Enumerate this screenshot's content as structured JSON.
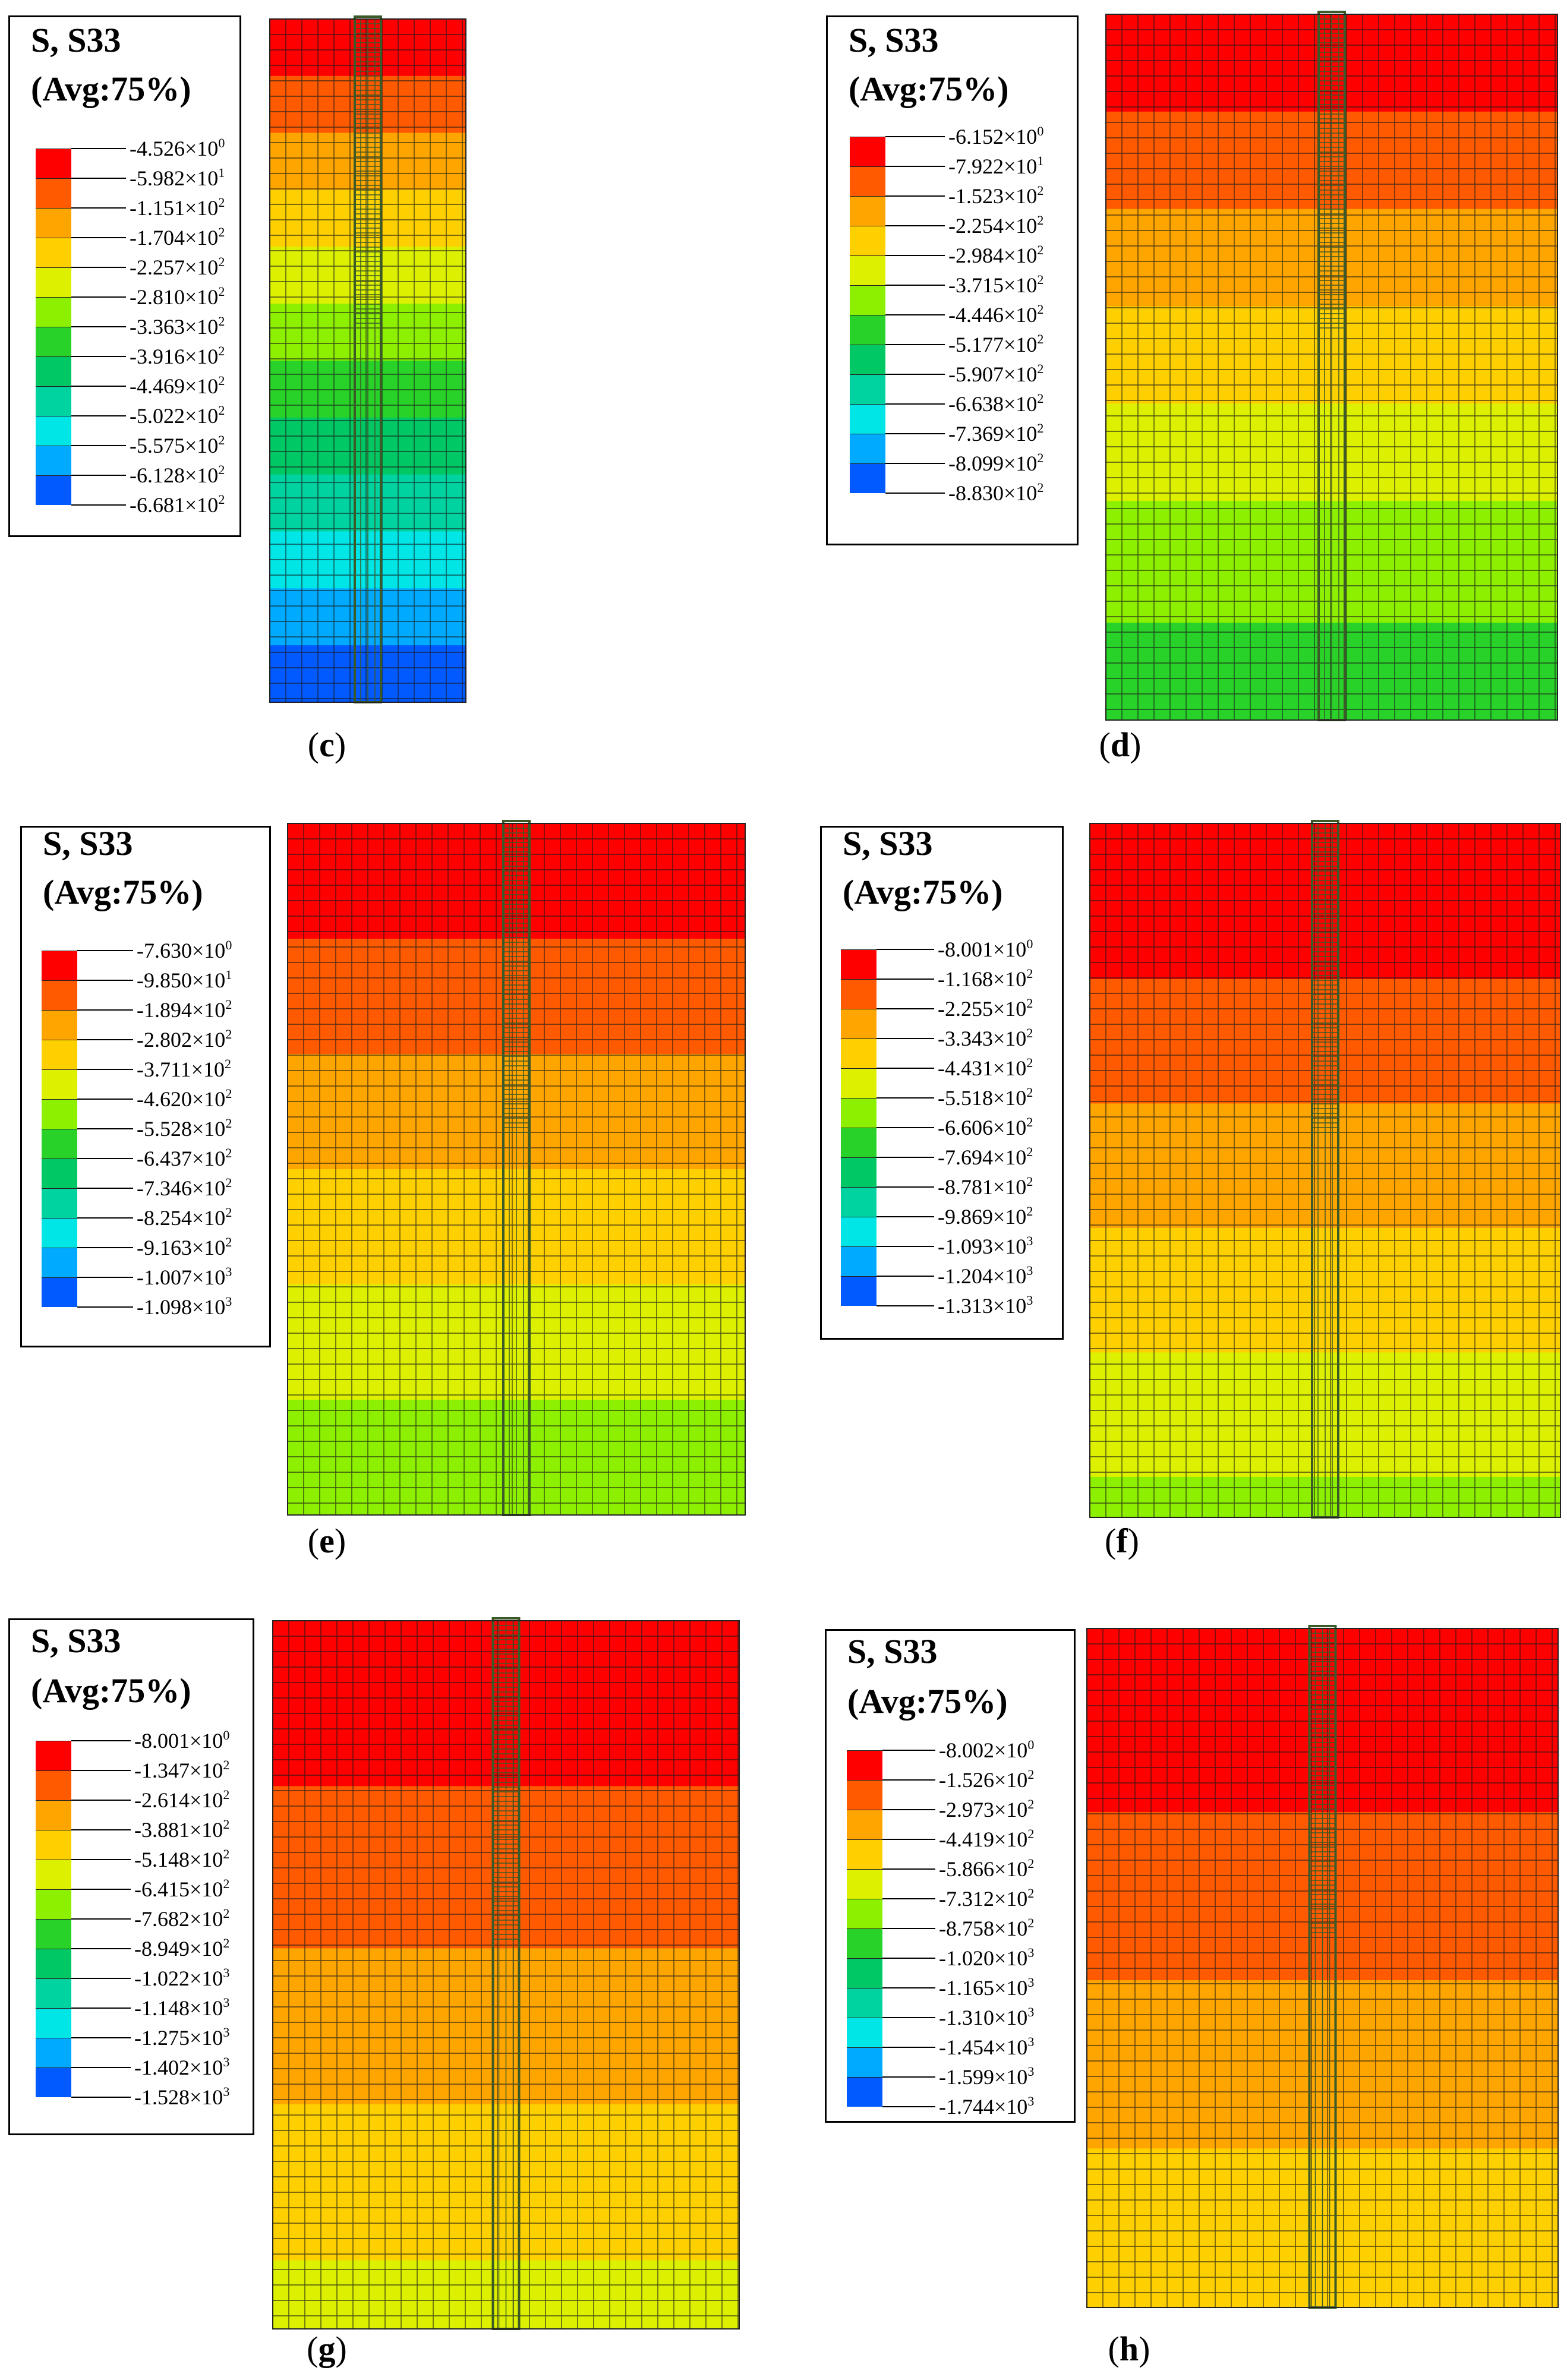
{
  "colors": {
    "scale": [
      "#ff0000",
      "#ff5a00",
      "#ffa500",
      "#ffd000",
      "#dcf000",
      "#8cf000",
      "#28d228",
      "#00c864",
      "#00d2a0",
      "#00e6e6",
      "#00aaff",
      "#005aff",
      "#0000ff"
    ],
    "mesh_line": "#1a1a1a",
    "pile": "#3c5a28"
  },
  "panels": [
    {
      "id": "c",
      "caption": {
        "open": "(",
        "letter": "c",
        "close": ")"
      },
      "title_line1": "S, S33",
      "title_line2": "(Avg:75%)",
      "ticks": [
        {
          "m": "-4.526",
          "x": "0"
        },
        {
          "m": "-5.982",
          "x": "1"
        },
        {
          "m": "-1.151",
          "x": "2"
        },
        {
          "m": "-1.704",
          "x": "2"
        },
        {
          "m": "-2.257",
          "x": "2"
        },
        {
          "m": "-2.810",
          "x": "2"
        },
        {
          "m": "-3.363",
          "x": "2"
        },
        {
          "m": "-3.916",
          "x": "2"
        },
        {
          "m": "-4.469",
          "x": "2"
        },
        {
          "m": "-5.022",
          "x": "2"
        },
        {
          "m": "-5.575",
          "x": "2"
        },
        {
          "m": "-6.128",
          "x": "2"
        },
        {
          "m": "-6.681",
          "x": "2"
        }
      ],
      "bands": [
        0,
        1,
        2,
        3,
        4,
        5,
        6,
        7,
        8,
        9,
        10,
        11
      ],
      "band_weights": [
        3,
        3,
        3,
        3,
        3,
        3,
        3,
        3,
        3,
        3,
        3,
        3
      ]
    },
    {
      "id": "d",
      "caption": {
        "open": "(",
        "letter": "d",
        "close": ")"
      },
      "title_line1": "S, S33",
      "title_line2": "(Avg:75%)",
      "ticks": [
        {
          "m": "-6.152",
          "x": "0"
        },
        {
          "m": "-7.922",
          "x": "1"
        },
        {
          "m": "-1.523",
          "x": "2"
        },
        {
          "m": "-2.254",
          "x": "2"
        },
        {
          "m": "-2.984",
          "x": "2"
        },
        {
          "m": "-3.715",
          "x": "2"
        },
        {
          "m": "-4.446",
          "x": "2"
        },
        {
          "m": "-5.177",
          "x": "2"
        },
        {
          "m": "-5.907",
          "x": "2"
        },
        {
          "m": "-6.638",
          "x": "2"
        },
        {
          "m": "-7.369",
          "x": "2"
        },
        {
          "m": "-8.099",
          "x": "2"
        },
        {
          "m": "-8.830",
          "x": "2"
        }
      ],
      "bands": [
        0,
        1,
        2,
        3,
        4,
        5,
        6
      ],
      "band_weights": [
        4,
        4,
        4,
        4,
        4,
        5,
        4
      ]
    },
    {
      "id": "e",
      "caption": {
        "open": "(",
        "letter": "e",
        "close": ")"
      },
      "title_line1": "S, S33",
      "title_line2": "(Avg:75%)",
      "ticks": [
        {
          "m": "-7.630",
          "x": "0"
        },
        {
          "m": "-9.850",
          "x": "1"
        },
        {
          "m": "-1.894",
          "x": "2"
        },
        {
          "m": "-2.802",
          "x": "2"
        },
        {
          "m": "-3.711",
          "x": "2"
        },
        {
          "m": "-4.620",
          "x": "2"
        },
        {
          "m": "-5.528",
          "x": "2"
        },
        {
          "m": "-6.437",
          "x": "2"
        },
        {
          "m": "-7.346",
          "x": "2"
        },
        {
          "m": "-8.254",
          "x": "2"
        },
        {
          "m": "-9.163",
          "x": "2"
        },
        {
          "m": "-1.007",
          "x": "3"
        },
        {
          "m": "-1.098",
          "x": "3"
        }
      ],
      "bands": [
        0,
        1,
        2,
        3,
        4,
        5
      ],
      "band_weights": [
        4,
        4,
        4,
        4,
        4,
        4
      ]
    },
    {
      "id": "f",
      "caption": {
        "open": "(",
        "letter": "f",
        "close": ")"
      },
      "title_line1": "S, S33",
      "title_line2": "(Avg:75%)",
      "ticks": [
        {
          "m": "-8.001",
          "x": "0"
        },
        {
          "m": "-1.168",
          "x": "2"
        },
        {
          "m": "-2.255",
          "x": "2"
        },
        {
          "m": "-3.343",
          "x": "2"
        },
        {
          "m": "-4.431",
          "x": "2"
        },
        {
          "m": "-5.518",
          "x": "2"
        },
        {
          "m": "-6.606",
          "x": "2"
        },
        {
          "m": "-7.694",
          "x": "2"
        },
        {
          "m": "-8.781",
          "x": "2"
        },
        {
          "m": "-9.869",
          "x": "2"
        },
        {
          "m": "-1.093",
          "x": "3"
        },
        {
          "m": "-1.204",
          "x": "3"
        },
        {
          "m": "-1.313",
          "x": "3"
        }
      ],
      "bands": [
        0,
        1,
        2,
        3,
        4,
        5
      ],
      "band_weights": [
        5,
        4,
        4,
        4,
        4,
        1.3
      ]
    },
    {
      "id": "g",
      "caption": {
        "open": "(",
        "letter": "g",
        "close": ")"
      },
      "title_line1": "S, S33",
      "title_line2": "(Avg:75%)",
      "ticks": [
        {
          "m": "-8.001",
          "x": "0"
        },
        {
          "m": "-1.347",
          "x": "2"
        },
        {
          "m": "-2.614",
          "x": "2"
        },
        {
          "m": "-3.881",
          "x": "2"
        },
        {
          "m": "-5.148",
          "x": "2"
        },
        {
          "m": "-6.415",
          "x": "2"
        },
        {
          "m": "-7.682",
          "x": "2"
        },
        {
          "m": "-8.949",
          "x": "2"
        },
        {
          "m": "-1.022",
          "x": "3"
        },
        {
          "m": "-1.148",
          "x": "3"
        },
        {
          "m": "-1.275",
          "x": "3"
        },
        {
          "m": "-1.402",
          "x": "3"
        },
        {
          "m": "-1.528",
          "x": "3"
        }
      ],
      "bands": [
        0,
        1,
        2,
        3,
        4
      ],
      "band_weights": [
        5.3,
        5.2,
        5,
        5,
        2.2
      ]
    },
    {
      "id": "h",
      "caption": {
        "open": "(",
        "letter": "h",
        "close": ")"
      },
      "title_line1": "S, S33",
      "title_line2": "(Avg:75%)",
      "ticks": [
        {
          "m": "-8.002",
          "x": "0"
        },
        {
          "m": "-1.526",
          "x": "2"
        },
        {
          "m": "-2.973",
          "x": "2"
        },
        {
          "m": "-4.419",
          "x": "2"
        },
        {
          "m": "-5.866",
          "x": "2"
        },
        {
          "m": "-7.312",
          "x": "2"
        },
        {
          "m": "-8.758",
          "x": "2"
        },
        {
          "m": "-1.020",
          "x": "3"
        },
        {
          "m": "-1.165",
          "x": "3"
        },
        {
          "m": "-1.310",
          "x": "3"
        },
        {
          "m": "-1.454",
          "x": "3"
        },
        {
          "m": "-1.599",
          "x": "3"
        },
        {
          "m": "-1.744",
          "x": "3"
        }
      ],
      "bands": [
        0,
        1,
        2,
        3
      ],
      "band_weights": [
        6,
        5.5,
        5.5,
        5.2
      ]
    }
  ]
}
